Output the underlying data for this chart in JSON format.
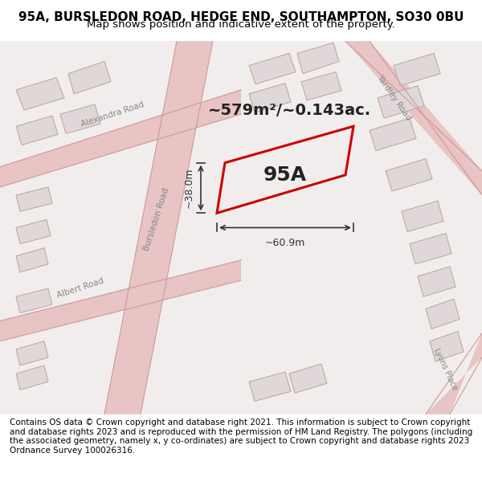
{
  "title_line1": "95A, BURSLEDON ROAD, HEDGE END, SOUTHAMPTON, SO30 0BU",
  "title_line2": "Map shows position and indicative extent of the property.",
  "area_text": "~579m²/~0.143ac.",
  "plot_label": "95A",
  "dim_width": "~60.9m",
  "dim_height": "~38.0m",
  "footer_text": "Contains OS data © Crown copyright and database right 2021. This information is subject to Crown copyright and database rights 2023 and is reproduced with the permission of HM Land Registry. The polygons (including the associated geometry, namely x, y co-ordinates) are subject to Crown copyright and database rights 2023 Ordnance Survey 100026316.",
  "bg_color": "#f5f0f0",
  "map_bg": "#f5f0f0",
  "road_color": "#e8c0c0",
  "road_line_color": "#d08080",
  "building_fill": "#e0d8d8",
  "building_edge": "#c0a8a8",
  "plot_edge": "#cc0000",
  "plot_fill": "none",
  "title_bg": "#ffffff",
  "footer_bg": "#ffffff"
}
